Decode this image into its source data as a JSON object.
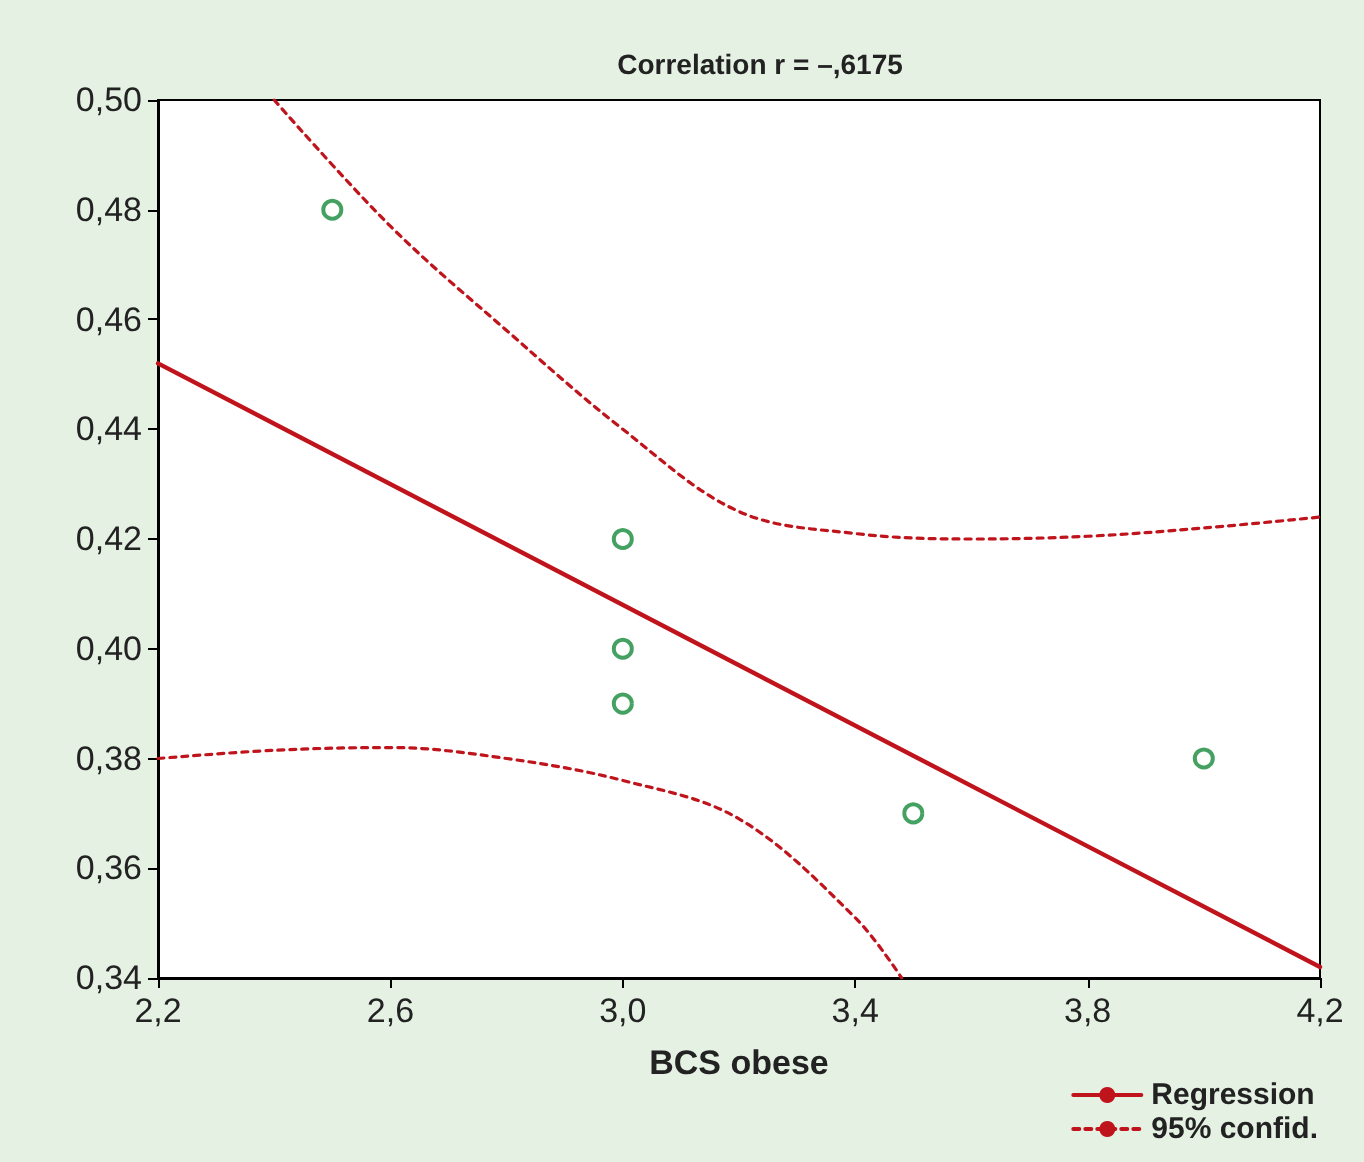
{
  "chart_data": {
    "type": "scatter",
    "title": "Correlation r = –,6175",
    "xlabel": "BCS obese",
    "xlim": [
      2.2,
      4.2
    ],
    "xticks": [
      {
        "value": 2.2,
        "label": "2,2"
      },
      {
        "value": 2.6,
        "label": "2,6"
      },
      {
        "value": 3.0,
        "label": "3,0"
      },
      {
        "value": 3.4,
        "label": "3,4"
      },
      {
        "value": 3.8,
        "label": "3,8"
      },
      {
        "value": 4.2,
        "label": "4,2"
      }
    ],
    "ylim": [
      0.34,
      0.5
    ],
    "yticks": [
      {
        "value": 0.34,
        "label": "0,34"
      },
      {
        "value": 0.36,
        "label": "0,36"
      },
      {
        "value": 0.38,
        "label": "0,38"
      },
      {
        "value": 0.4,
        "label": "0,40"
      },
      {
        "value": 0.42,
        "label": "0,42"
      },
      {
        "value": 0.44,
        "label": "0,44"
      },
      {
        "value": 0.46,
        "label": "0,46"
      },
      {
        "value": 0.48,
        "label": "0,48"
      },
      {
        "value": 0.5,
        "label": "0,50"
      }
    ],
    "grid": false,
    "legend": "bottom right",
    "marker": "circle",
    "series": [
      {
        "color": "#15893a",
        "x": [
          2.5,
          3.0,
          3.0,
          3.0,
          3.5,
          4.0
        ],
        "values": [
          0.48,
          0.42,
          0.4,
          0.39,
          0.37,
          0.38
        ]
      },
      {
        "type": "line",
        "name": "Regression",
        "color": "#c0141c",
        "line_style": "solid",
        "marker": "none",
        "x": [
          2.2,
          4.2
        ],
        "values": [
          0.452,
          0.342
        ]
      },
      {
        "type": "line",
        "name": "95% confid.",
        "color": "#c0141c",
        "line_style": "dotted",
        "marker": "none",
        "x": [
          2.4,
          2.6,
          2.8,
          3.0,
          3.2,
          3.4,
          3.6,
          3.8,
          4.0,
          4.2
        ],
        "values": [
          0.5,
          0.477,
          0.458,
          0.44,
          0.425,
          0.421,
          0.42,
          0.4205,
          0.422,
          0.424
        ]
      },
      {
        "type": "line",
        "color": "#c0141c",
        "line_style": "dotted",
        "marker": "none",
        "x": [
          2.2,
          2.4,
          2.6,
          2.8,
          3.0,
          3.2,
          3.4,
          3.48
        ],
        "values": [
          0.38,
          0.3815,
          0.382,
          0.38,
          0.376,
          0.369,
          0.351,
          0.34
        ]
      }
    ]
  }
}
